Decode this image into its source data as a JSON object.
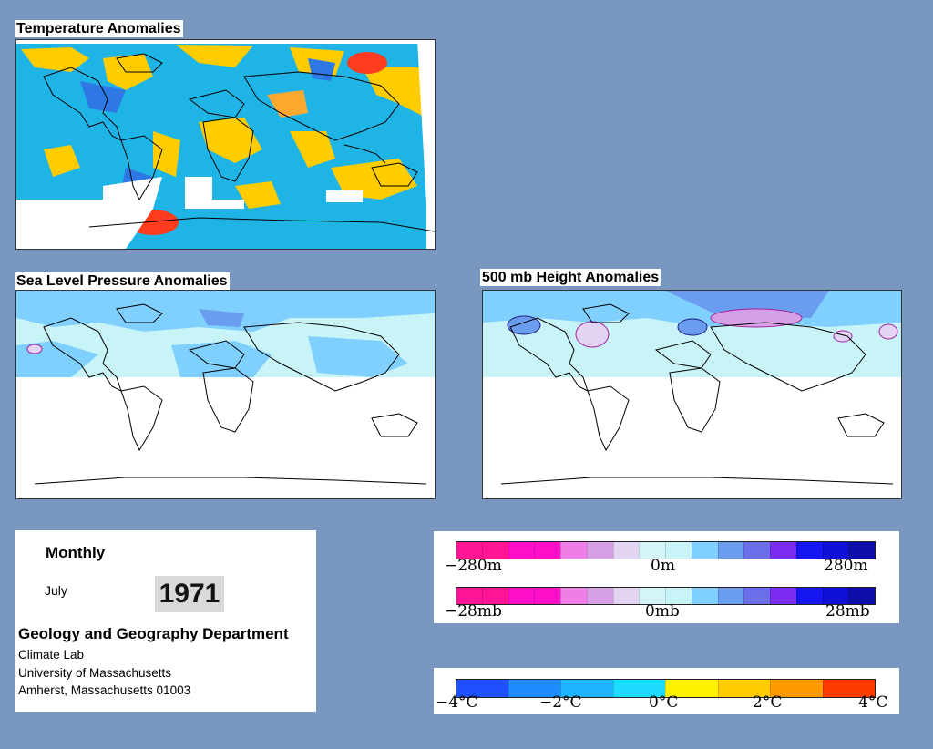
{
  "panels": {
    "temperature": {
      "title": "Temperature Anomalies"
    },
    "slp": {
      "title": "Sea Level Pressure Anomalies"
    },
    "height500": {
      "title": "500 mb Height Anomalies"
    }
  },
  "info": {
    "frequency": "Monthly",
    "month": "July",
    "year": "1971",
    "department": "Geology and Geography Department",
    "lab": "Climate Lab",
    "university": "University of Massachusetts",
    "address": "Amherst, Massachusetts 01003"
  },
  "legend_height": {
    "min_label": "−280m",
    "mid_label": "0m",
    "max_label": "280m",
    "colors": [
      "#ff1493",
      "#ff1493",
      "#ff10c8",
      "#ff10c8",
      "#ee7ee6",
      "#d8a0e4",
      "#e2d4f2",
      "#d4f5f8",
      "#c8f4f8",
      "#7fd0ff",
      "#6a9cf0",
      "#6b6ee8",
      "#7a2cf0",
      "#1616f0",
      "#1010d8",
      "#0e0eaa"
    ]
  },
  "legend_pressure": {
    "min_label": "−28mb",
    "mid_label": "0mb",
    "max_label": "28mb",
    "colors": [
      "#ff1493",
      "#ff1493",
      "#ff10c8",
      "#ff10c8",
      "#ee7ee6",
      "#d8a0e4",
      "#e2d4f2",
      "#d4f5f8",
      "#c8f4f8",
      "#7fd0ff",
      "#6a9cf0",
      "#6b6ee8",
      "#7a2cf0",
      "#1616f0",
      "#1010d8",
      "#0e0eaa"
    ]
  },
  "legend_temperature": {
    "labels": [
      "−4°C",
      "−2°C",
      "0°C",
      "2°C",
      "4°C"
    ],
    "colors": [
      "#1e50ff",
      "#1e8cff",
      "#1eb4ff",
      "#1edcff",
      "#fff000",
      "#ffcc00",
      "#ff9a00",
      "#ff3c00"
    ]
  },
  "colors": {
    "background": "#7a98bf",
    "warm": "#ffcc00",
    "cool": "#1ab4f0",
    "pale_cyan": "#c8f4f8",
    "light_blue": "#7fb0f0"
  }
}
